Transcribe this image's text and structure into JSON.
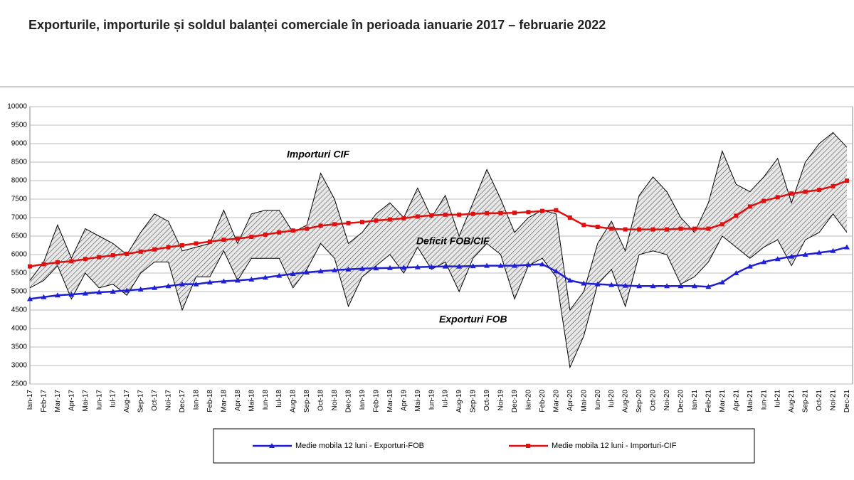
{
  "chart_data": {
    "type": "line",
    "title": "Exporturile, importurile și soldul balanței comerciale în perioada ianuarie 2017 – februarie 2022",
    "annotation": "Deficit FOB/CIF",
    "categories": [
      "Ian-17",
      "Feb-17",
      "Mar-17",
      "Apr-17",
      "Mai-17",
      "Iun-17",
      "Iul-17",
      "Aug-17",
      "Sep-17",
      "Oct-17",
      "Noi-17",
      "Dec-17",
      "Ian-18",
      "Feb-18",
      "Mar-18",
      "Apr-18",
      "Mai-18",
      "Iun-18",
      "Iul-18",
      "Aug-18",
      "Sep-18",
      "Oct-18",
      "Noi-18",
      "Dec-18",
      "Ian-19",
      "Feb-19",
      "Mar-19",
      "Apr-19",
      "Mai-19",
      "Iun-19",
      "Iul-19",
      "Aug-19",
      "Sep-19",
      "Oct-19",
      "Noi-19",
      "Dec-19",
      "Ian-20",
      "Feb-20",
      "Mar-20",
      "Apr-20",
      "Mai-20",
      "Iun-20",
      "Iul-20",
      "Aug-20",
      "Sep-20",
      "Oct-20",
      "Noi-20",
      "Dec-20",
      "Ian-21",
      "Feb-21",
      "Mar-21",
      "Apr-21",
      "Mai-21",
      "Iun-21",
      "Iul-21",
      "Aug-21",
      "Sep-21",
      "Oct-21",
      "Noi-21",
      "Dec-21"
    ],
    "series": [
      {
        "name": "Importuri CIF",
        "color": "#000000",
        "values": [
          5300,
          5800,
          6800,
          5900,
          6700,
          6500,
          6300,
          6000,
          6600,
          7100,
          6900,
          6100,
          6200,
          6300,
          7200,
          6300,
          7100,
          7200,
          7200,
          6600,
          6800,
          8200,
          7500,
          6300,
          6600,
          7100,
          7400,
          7000,
          7800,
          7000,
          7600,
          6500,
          7400,
          8300,
          7500,
          6600,
          7000,
          7200,
          7100,
          4500,
          5000,
          6300,
          6900,
          6100,
          7600,
          8100,
          7700,
          7000,
          6600,
          7400,
          8800,
          7900,
          7700,
          8100,
          8600,
          7400,
          8500,
          9000,
          9300,
          8900
        ]
      },
      {
        "name": "Exporturi FOB",
        "color": "#000000",
        "values": [
          5100,
          5300,
          5700,
          4800,
          5500,
          5100,
          5200,
          4900,
          5500,
          5800,
          5800,
          4500,
          5400,
          5400,
          6100,
          5300,
          5900,
          5900,
          5900,
          5100,
          5600,
          6300,
          5900,
          4600,
          5400,
          5700,
          6000,
          5500,
          6200,
          5600,
          5800,
          5000,
          5900,
          6300,
          6000,
          4800,
          5700,
          5900,
          5400,
          2950,
          3800,
          5200,
          5600,
          4600,
          6000,
          6100,
          6000,
          5200,
          5400,
          5800,
          6500,
          6200,
          5900,
          6200,
          6400,
          5700,
          6400,
          6600,
          7100,
          6600
        ]
      },
      {
        "name": "Medie mobila 12 luni - Exporturi-FOB",
        "color": "#1f1fd6",
        "marker": "triangle",
        "values": [
          4800,
          4850,
          4900,
          4920,
          4950,
          4980,
          5000,
          5030,
          5060,
          5100,
          5150,
          5200,
          5200,
          5250,
          5280,
          5300,
          5330,
          5380,
          5430,
          5480,
          5520,
          5550,
          5580,
          5600,
          5620,
          5630,
          5640,
          5650,
          5660,
          5670,
          5680,
          5680,
          5690,
          5700,
          5700,
          5700,
          5720,
          5740,
          5550,
          5300,
          5220,
          5200,
          5180,
          5160,
          5150,
          5150,
          5150,
          5150,
          5150,
          5130,
          5250,
          5500,
          5680,
          5800,
          5880,
          5950,
          6000,
          6050,
          6100,
          6200
        ]
      },
      {
        "name": "Medie mobila 12 luni - Importuri-CIF",
        "color": "#e01010",
        "marker": "square",
        "values": [
          5680,
          5740,
          5790,
          5820,
          5880,
          5930,
          5980,
          6020,
          6080,
          6140,
          6200,
          6250,
          6300,
          6350,
          6400,
          6430,
          6480,
          6540,
          6600,
          6650,
          6700,
          6780,
          6820,
          6850,
          6880,
          6920,
          6950,
          6980,
          7030,
          7060,
          7080,
          7080,
          7100,
          7120,
          7120,
          7130,
          7150,
          7180,
          7200,
          7000,
          6800,
          6750,
          6700,
          6680,
          6680,
          6680,
          6680,
          6700,
          6700,
          6700,
          6820,
          7050,
          7300,
          7450,
          7550,
          7650,
          7700,
          7750,
          7850,
          8000
        ]
      }
    ],
    "ylim": [
      2500,
      10000
    ],
    "yticks": [
      2500,
      3000,
      3500,
      4000,
      4500,
      5000,
      5500,
      6000,
      6500,
      7000,
      7500,
      8000,
      8500,
      9000,
      9500,
      10000
    ],
    "grid": true
  }
}
